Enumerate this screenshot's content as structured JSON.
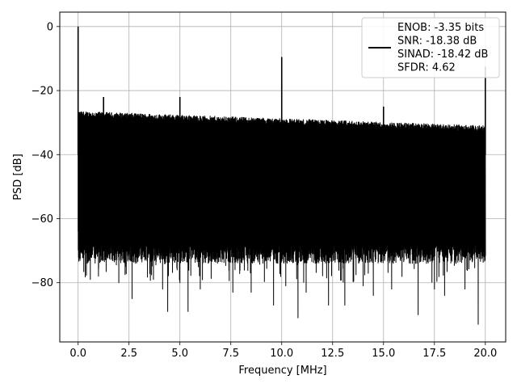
{
  "chart_data": {
    "type": "line",
    "title": "",
    "xlabel": "Frequency [MHz]",
    "ylabel": "PSD [dB]",
    "xlim": [
      -0.9,
      21.0
    ],
    "ylim": [
      -98.5,
      4.5
    ],
    "xticks": [
      0.0,
      2.5,
      5.0,
      7.5,
      10.0,
      12.5,
      15.0,
      17.5,
      20.0
    ],
    "xtick_labels": [
      "0.0",
      "2.5",
      "5.0",
      "7.5",
      "10.0",
      "12.5",
      "15.0",
      "17.5",
      "20.0"
    ],
    "yticks": [
      0,
      -20,
      -40,
      -60,
      -80
    ],
    "ytick_labels": [
      "0",
      "−20",
      "−40",
      "−60",
      "−80"
    ],
    "grid": true,
    "legend_position": "top-right",
    "legend_lines": [
      "ENOB: -3.35 bits",
      "SNR: -18.38 dB",
      "SINAD: -18.42 dB",
      "SFDR: 4.62"
    ],
    "series": [
      {
        "color": "#000000",
        "noise_floor": {
          "x": [
            0.0,
            20.0
          ],
          "top_db": [
            -27.5,
            -32.0
          ],
          "bottom_db": [
            -68.0,
            -68.0
          ]
        },
        "spurs": [
          {
            "x": 0.0,
            "y": 0.0
          },
          {
            "x": 1.25,
            "y": -22.0
          },
          {
            "x": 5.0,
            "y": -22.0
          },
          {
            "x": 10.0,
            "y": -9.5
          },
          {
            "x": 15.0,
            "y": -25.0
          },
          {
            "x": 20.0,
            "y": -12.5
          }
        ],
        "dips": [
          {
            "x": 0.6,
            "y": -79
          },
          {
            "x": 1.0,
            "y": -78
          },
          {
            "x": 2.0,
            "y": -80
          },
          {
            "x": 2.65,
            "y": -85
          },
          {
            "x": 3.7,
            "y": -79
          },
          {
            "x": 4.15,
            "y": -82
          },
          {
            "x": 4.4,
            "y": -89
          },
          {
            "x": 5.0,
            "y": -80
          },
          {
            "x": 5.4,
            "y": -89
          },
          {
            "x": 6.0,
            "y": -82
          },
          {
            "x": 7.6,
            "y": -83
          },
          {
            "x": 8.5,
            "y": -83
          },
          {
            "x": 9.6,
            "y": -87
          },
          {
            "x": 10.2,
            "y": -81
          },
          {
            "x": 10.8,
            "y": -91
          },
          {
            "x": 11.2,
            "y": -83
          },
          {
            "x": 12.3,
            "y": -87
          },
          {
            "x": 13.1,
            "y": -87
          },
          {
            "x": 14.0,
            "y": -81
          },
          {
            "x": 14.5,
            "y": -84
          },
          {
            "x": 15.4,
            "y": -82
          },
          {
            "x": 16.7,
            "y": -90
          },
          {
            "x": 17.5,
            "y": -82
          },
          {
            "x": 18.0,
            "y": -84
          },
          {
            "x": 19.0,
            "y": -82
          },
          {
            "x": 19.65,
            "y": -93
          }
        ]
      }
    ]
  }
}
